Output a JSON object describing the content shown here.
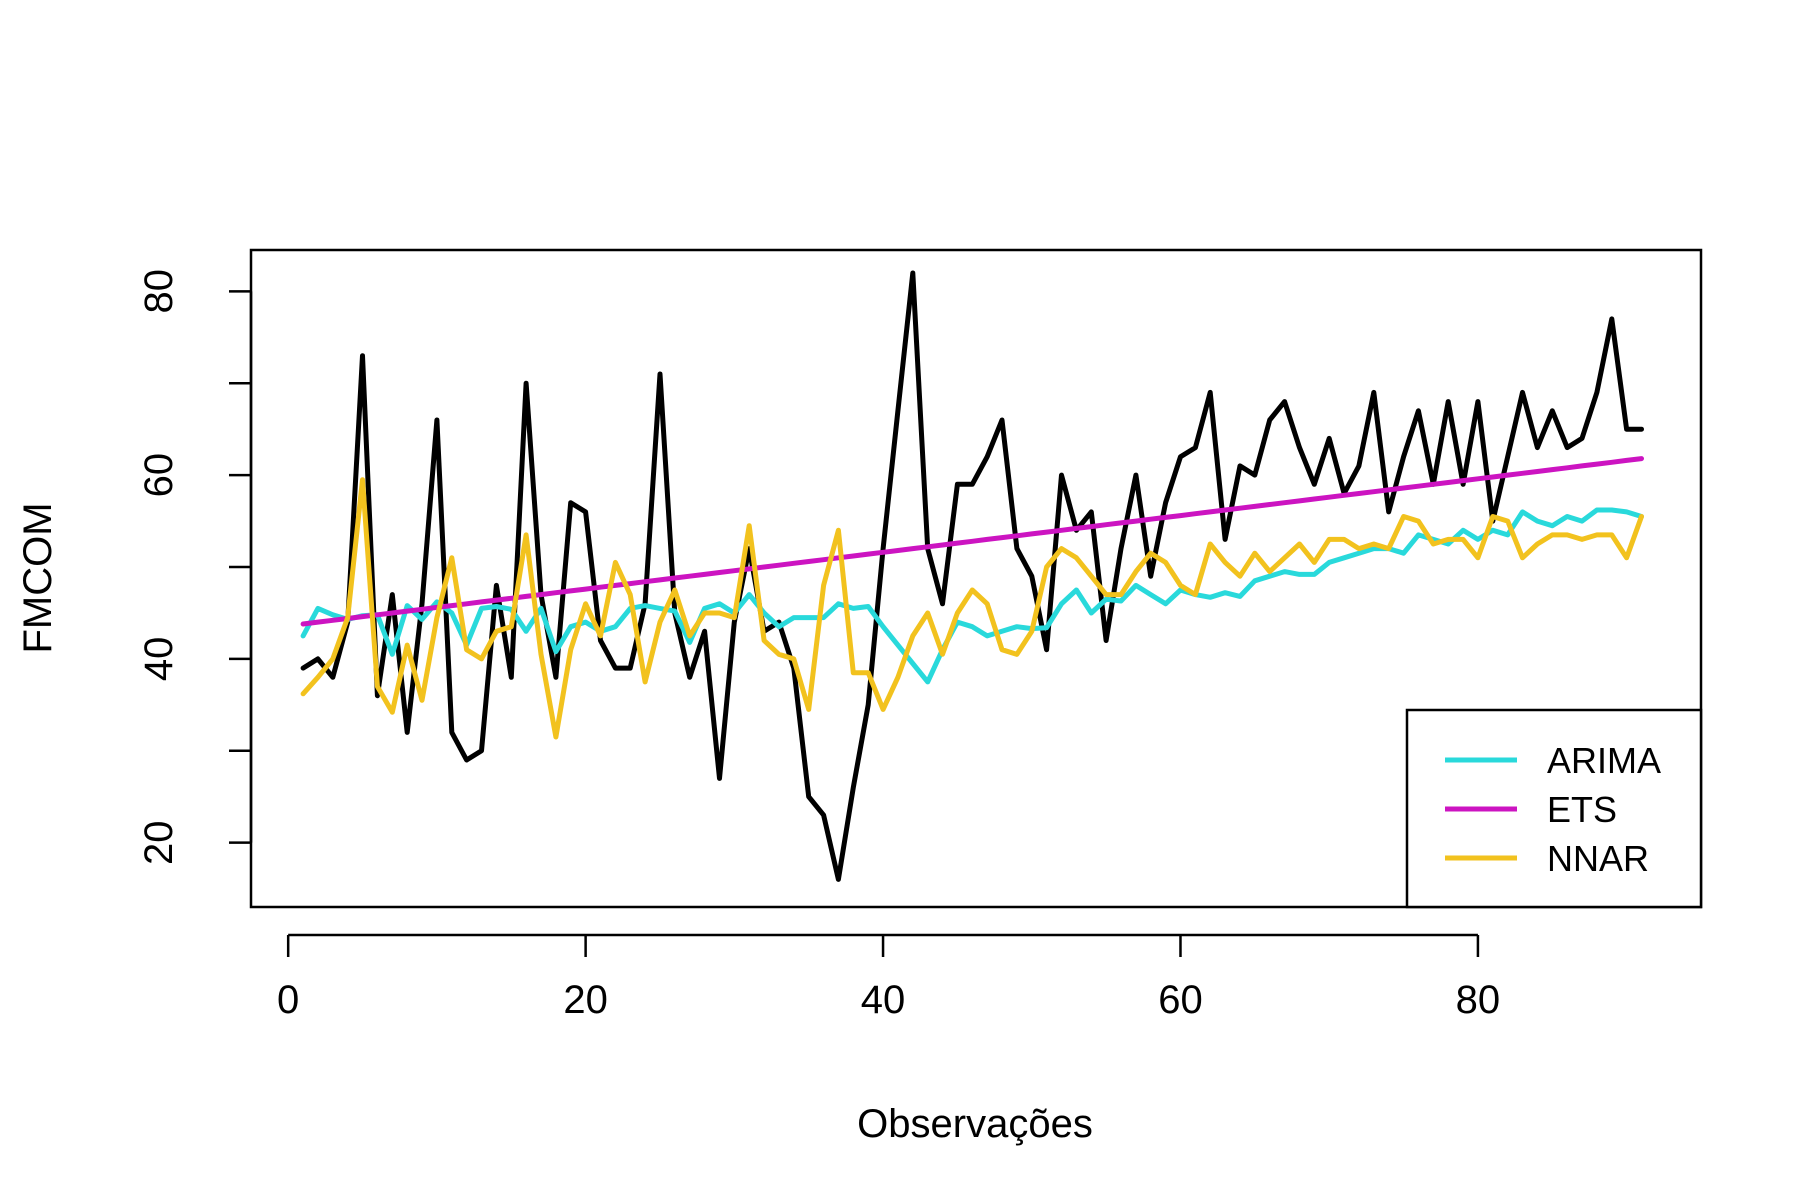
{
  "chart_data": {
    "type": "line",
    "xlabel": "Observações",
    "ylabel": "FMCOM",
    "xlim": [
      -2.5,
      95
    ],
    "ylim": [
      13,
      84.5
    ],
    "xticks": [
      0,
      20,
      40,
      60,
      80
    ],
    "yticks": [
      20,
      40,
      60,
      80
    ],
    "grid": false,
    "legend_position": "bottom-right",
    "x": [
      1,
      2,
      3,
      4,
      5,
      6,
      7,
      8,
      9,
      10,
      11,
      12,
      13,
      14,
      15,
      16,
      17,
      18,
      19,
      20,
      21,
      22,
      23,
      24,
      25,
      26,
      27,
      28,
      29,
      30,
      31,
      32,
      33,
      34,
      35,
      36,
      37,
      38,
      39,
      40,
      41,
      42,
      43,
      44,
      45,
      46,
      47,
      48,
      49,
      50,
      51,
      52,
      53,
      54,
      55,
      56,
      57,
      58,
      59,
      60,
      61,
      62,
      63,
      64,
      65,
      66,
      67,
      68,
      69,
      70,
      71,
      72,
      73,
      74,
      75,
      76,
      77,
      78,
      79,
      80,
      81,
      82,
      83,
      84,
      85,
      86,
      87,
      88,
      89,
      90,
      91
    ],
    "series": [
      {
        "color": "#000000",
        "values": [
          39,
          40,
          38,
          44,
          73,
          36,
          47,
          32,
          46,
          66,
          32,
          29,
          30,
          48,
          38,
          70,
          47,
          38,
          57,
          56,
          42,
          39,
          39,
          46,
          71,
          45,
          38,
          43,
          27,
          44,
          52,
          43,
          44,
          39,
          25,
          23,
          16,
          26,
          35,
          52,
          67,
          82,
          52,
          46,
          59,
          59,
          62,
          66,
          52,
          49,
          41,
          60,
          54,
          56,
          42,
          52,
          60,
          49,
          57,
          62,
          63,
          69,
          53,
          61,
          60,
          66,
          68,
          63,
          59,
          64,
          58,
          61,
          69,
          56,
          62,
          67,
          59,
          68,
          59,
          68,
          55,
          62,
          69,
          63,
          67,
          63,
          64,
          69,
          77,
          65,
          65
        ]
      },
      {
        "name": "ARIMA",
        "color": "#29D9DB",
        "values": [
          42.5,
          45.5,
          44.8,
          44.3,
          44.7,
          44.8,
          40.5,
          45.8,
          44.3,
          46.2,
          45.0,
          41.5,
          45.5,
          45.7,
          45.4,
          43.0,
          45.5,
          40.8,
          43.5,
          44.0,
          43.0,
          43.5,
          45.5,
          45.8,
          45.5,
          45.2,
          41.8,
          45.5,
          46.0,
          45.0,
          47.0,
          45.0,
          43.5,
          44.5,
          44.5,
          44.5,
          46.0,
          45.5,
          45.7,
          43.5,
          41.5,
          39.5,
          37.5,
          41.0,
          44.0,
          43.5,
          42.5,
          43.0,
          43.5,
          43.3,
          43.4,
          46.0,
          47.5,
          45.0,
          46.5,
          46.3,
          48.0,
          47.0,
          46.0,
          47.5,
          47.0,
          46.7,
          47.2,
          46.8,
          48.5,
          49.0,
          49.5,
          49.2,
          49.2,
          50.5,
          51.0,
          51.5,
          52.0,
          52.0,
          51.5,
          53.5,
          53.0,
          52.5,
          54.0,
          53.0,
          54.0,
          53.5,
          56.0,
          55.0,
          54.5,
          55.5,
          55.0,
          56.2,
          56.2,
          56.0,
          55.5
        ]
      },
      {
        "name": "ETS",
        "color": "#CC14C1",
        "values": [
          43.8,
          44.0,
          44.2,
          44.4,
          44.6,
          44.8,
          45.0,
          45.2,
          45.4,
          45.6,
          45.8,
          46.0,
          46.2,
          46.4,
          46.6,
          46.8,
          47.0,
          47.2,
          47.4,
          47.6,
          47.8,
          48.0,
          48.2,
          48.4,
          48.6,
          48.8,
          49.0,
          49.2,
          49.4,
          49.6,
          49.8,
          50.0,
          50.2,
          50.4,
          50.6,
          50.8,
          51.0,
          51.2,
          51.4,
          51.6,
          51.8,
          52.0,
          52.2,
          52.4,
          52.6,
          52.8,
          53.0,
          53.2,
          53.4,
          53.6,
          53.8,
          54.0,
          54.2,
          54.4,
          54.6,
          54.8,
          55.0,
          55.2,
          55.4,
          55.6,
          55.8,
          56.0,
          56.2,
          56.4,
          56.6,
          56.8,
          57.0,
          57.2,
          57.4,
          57.6,
          57.8,
          58.0,
          58.2,
          58.4,
          58.6,
          58.8,
          59.0,
          59.2,
          59.4,
          59.6,
          59.8,
          60.0,
          60.2,
          60.4,
          60.6,
          60.8,
          61.0,
          61.2,
          61.4,
          61.6,
          61.8
        ]
      },
      {
        "name": "NNAR",
        "color": "#F2C21E",
        "values": [
          36.2,
          38.0,
          40.0,
          44.5,
          59.5,
          37.0,
          34.2,
          41.5,
          35.5,
          44.5,
          51.0,
          41.0,
          40.0,
          43.0,
          43.5,
          53.5,
          40.5,
          31.5,
          41.0,
          46.0,
          42.5,
          50.5,
          47.0,
          37.5,
          44.0,
          47.5,
          42.5,
          45.0,
          45.0,
          44.5,
          54.5,
          42.0,
          40.5,
          40.0,
          34.5,
          48.0,
          54.0,
          38.5,
          38.5,
          34.5,
          38.0,
          42.5,
          45.0,
          40.5,
          45.0,
          47.5,
          46.0,
          41.0,
          40.5,
          43.0,
          50.0,
          52.0,
          51.0,
          49.0,
          47.0,
          47.0,
          49.5,
          51.5,
          50.5,
          48.0,
          47.0,
          52.5,
          50.5,
          49.0,
          51.5,
          49.5,
          51.0,
          52.5,
          50.5,
          53.0,
          53.0,
          52.0,
          52.5,
          52.0,
          55.5,
          55.0,
          52.5,
          53.0,
          53.0,
          51.0,
          55.5,
          55.0,
          51.0,
          52.5,
          53.5,
          53.5,
          53.0,
          53.5,
          53.5,
          51.0,
          55.5
        ]
      }
    ]
  }
}
